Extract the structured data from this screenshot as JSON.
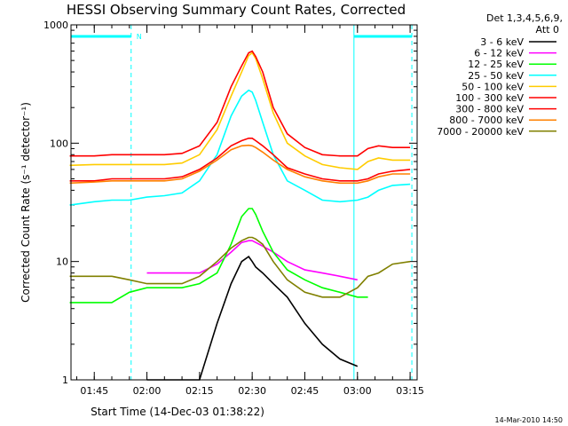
{
  "chart_data": {
    "type": "line",
    "title": "HESSI Observing Summary Count Rates, Corrected",
    "xlabel": "Start Time (14-Dec-03 01:38:22)",
    "ylabel": "Corrected Count Rate (s⁻¹ detector⁻¹)",
    "yscale": "log",
    "ylim": [
      1,
      1000
    ],
    "xlim": [
      "01:38:22",
      "03:17:00"
    ],
    "x_ticks": [
      "01:45",
      "02:00",
      "02:15",
      "02:30",
      "02:45",
      "03:00",
      "03:15"
    ],
    "y_ticks": [
      "1",
      "10",
      "100",
      "1000"
    ],
    "legend_header": [
      "Det 1,3,4,5,6,9,",
      "Att 0"
    ],
    "legend_position": "right",
    "timestamp": "14-Mar-2010 14:50",
    "markers": [
      {
        "label": "N",
        "color": "#00ffff",
        "time_start": "01:38:22",
        "time_end": "01:55:30"
      },
      {
        "label": "",
        "color": "#00ffff",
        "time_start": "02:59:00",
        "time_end": "03:15:30"
      }
    ],
    "x_times": [
      "01:38",
      "01:45",
      "01:50",
      "01:55",
      "02:00",
      "02:05",
      "02:10",
      "02:15",
      "02:20",
      "02:24",
      "02:27",
      "02:29",
      "02:30",
      "02:31",
      "02:33",
      "02:36",
      "02:40",
      "02:45",
      "02:50",
      "02:55",
      "03:00",
      "03:03",
      "03:06",
      "03:10",
      "03:15"
    ],
    "series": [
      {
        "name": "3 - 6 keV",
        "color": "#000000",
        "values": [
          null,
          null,
          null,
          null,
          1.0,
          1.0,
          1.0,
          1.0,
          3.0,
          6.5,
          10.0,
          11.0,
          10.0,
          9.0,
          8.0,
          6.5,
          5.0,
          3.0,
          2.0,
          1.5,
          1.3,
          null,
          null,
          null,
          null
        ]
      },
      {
        "name": "6 - 12 keV",
        "color": "#ff00ff",
        "values": [
          null,
          null,
          null,
          null,
          8.0,
          8.0,
          8.0,
          8.0,
          9.5,
          12.0,
          14.5,
          15.0,
          15.0,
          14.5,
          13.5,
          12.0,
          10.0,
          8.5,
          8.0,
          7.5,
          7.0,
          null,
          null,
          null,
          null
        ]
      },
      {
        "name": "12 - 25 keV",
        "color": "#00ff00",
        "values": [
          4.5,
          4.5,
          4.5,
          5.5,
          6.0,
          6.0,
          6.0,
          6.5,
          8.0,
          14.0,
          24.0,
          28.0,
          28.0,
          25.0,
          18.0,
          12.0,
          8.5,
          7.0,
          6.0,
          5.5,
          5.0,
          5.0,
          null,
          null,
          null
        ]
      },
      {
        "name": "25 - 50 keV",
        "color": "#00ffff",
        "values": [
          30,
          32,
          33,
          33,
          35,
          36,
          38,
          48,
          80,
          170,
          250,
          280,
          270,
          230,
          150,
          80,
          48,
          40,
          33,
          32,
          33,
          35,
          40,
          44,
          45
        ]
      },
      {
        "name": "50 - 100 keV",
        "color": "#ffcc00",
        "values": [
          65,
          66,
          66,
          66,
          66,
          66,
          68,
          80,
          130,
          250,
          400,
          550,
          580,
          520,
          350,
          180,
          100,
          78,
          66,
          62,
          60,
          70,
          75,
          72,
          72
        ]
      },
      {
        "name": "100 - 300 keV",
        "color": "#ff0000",
        "values": [
          78,
          78,
          80,
          80,
          80,
          80,
          82,
          95,
          150,
          300,
          450,
          580,
          600,
          540,
          400,
          200,
          120,
          92,
          80,
          78,
          78,
          90,
          95,
          92,
          92
        ]
      },
      {
        "name": "300 - 800 keV",
        "color": "#ff0000",
        "values": [
          48,
          48,
          50,
          50,
          50,
          50,
          52,
          60,
          75,
          95,
          105,
          110,
          110,
          105,
          95,
          80,
          62,
          55,
          50,
          48,
          48,
          50,
          55,
          58,
          60
        ]
      },
      {
        "name": "800 - 7000 keV",
        "color": "#ff8000",
        "values": [
          46,
          47,
          48,
          48,
          48,
          48,
          50,
          58,
          72,
          88,
          95,
          96,
          95,
          92,
          84,
          72,
          60,
          52,
          48,
          46,
          46,
          48,
          52,
          55,
          55
        ]
      },
      {
        "name": "7000 - 20000 keV",
        "color": "#808000",
        "values": [
          7.5,
          7.5,
          7.5,
          7.0,
          6.5,
          6.5,
          6.5,
          7.5,
          10.0,
          13.0,
          15.0,
          16.0,
          16.0,
          15.5,
          14.0,
          10.0,
          7.0,
          5.5,
          5.0,
          5.0,
          6.0,
          7.5,
          8.0,
          9.5,
          10.0
        ]
      }
    ]
  }
}
